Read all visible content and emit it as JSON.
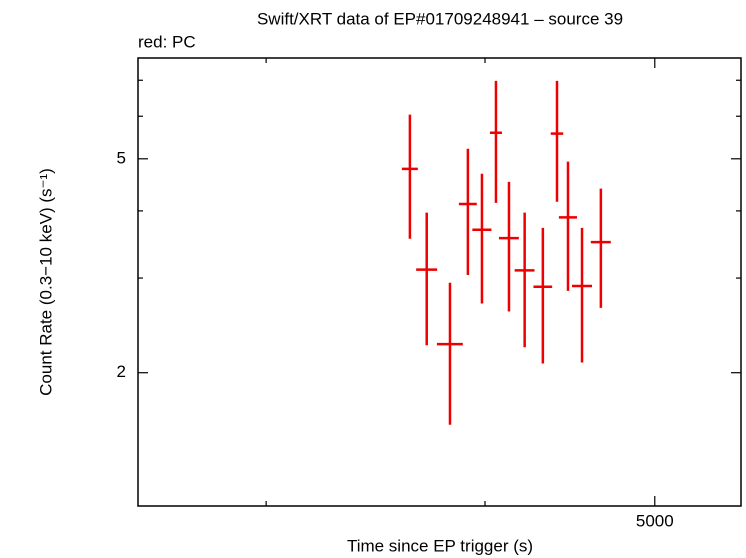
{
  "chart_data": {
    "type": "errorbar",
    "title": "Swift/XRT data of EP#01709248941 – source 39",
    "subtitle": "red: PC",
    "xlabel": "Time since EP trigger (s)",
    "ylabel": "Count Rate (0.3−10 keV) (s⁻¹)",
    "xscale": "log",
    "yscale": "log",
    "xlim": [
      2535,
      5600
    ],
    "ylim": [
      1.13,
      7.7
    ],
    "xticks": [
      5000
    ],
    "xminor_ticks": [
      3000,
      4000
    ],
    "yticks": [
      2,
      5
    ],
    "yminor_ticks": [
      3,
      4,
      6,
      7
    ],
    "series": [
      {
        "color": "#ee0000",
        "x": [
          3624,
          3705,
          3820,
          3911,
          3984,
          4058,
          4128,
          4214,
          4316,
          4397,
          4461,
          4544,
          4658
        ],
        "xerr": [
          38,
          51,
          65,
          46,
          50,
          32,
          54,
          55,
          53,
          36,
          53,
          60,
          61
        ],
        "y": [
          4.79,
          3.11,
          2.26,
          4.12,
          3.69,
          5.59,
          3.56,
          3.1,
          2.89,
          5.57,
          3.89,
          2.9,
          3.5
        ],
        "yerr_minus": [
          1.24,
          0.86,
          0.66,
          1.08,
          1.0,
          1.45,
          0.96,
          0.87,
          0.81,
          1.41,
          1.05,
          0.81,
          0.86
        ],
        "yerr_plus": [
          1.25,
          0.86,
          0.68,
          1.1,
          1.0,
          1.39,
          0.97,
          0.87,
          0.83,
          1.41,
          1.05,
          0.82,
          0.9
        ]
      }
    ]
  }
}
